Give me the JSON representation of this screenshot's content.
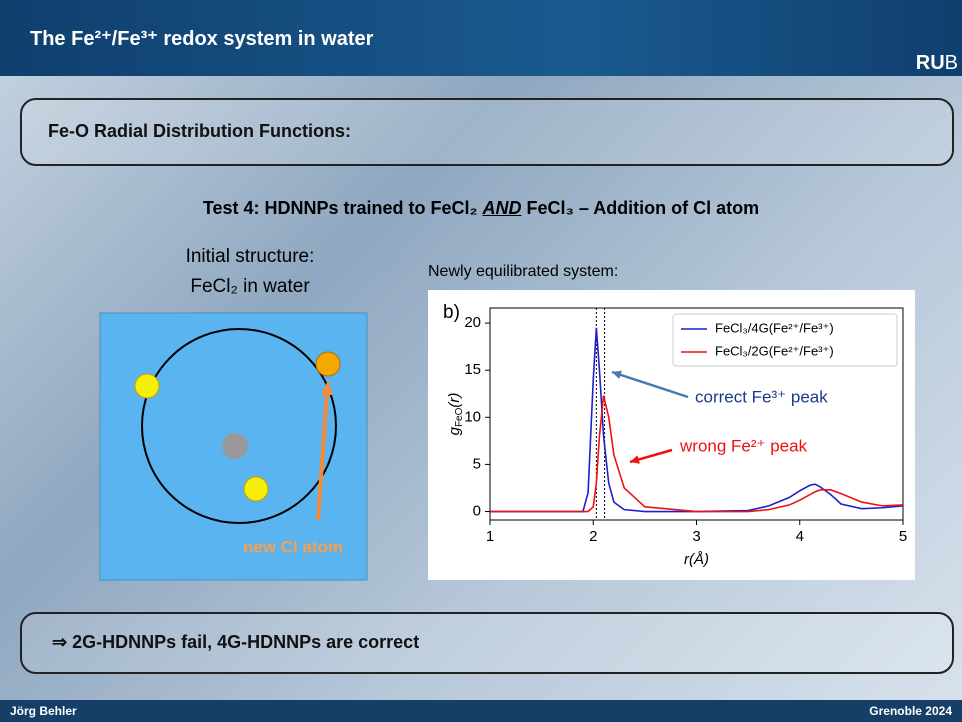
{
  "header": {
    "title": "The Fe²⁺/Fe³⁺ redox system in water",
    "logo_bold": "RU",
    "logo_light": "B"
  },
  "section_title": "Fe-O Radial Distribution Functions:",
  "test_title": {
    "before": "Test 4: HDNNPs trained to FeCl₂ ",
    "emphasis": "AND",
    "after": " FeCl₃ – Addition of Cl atom"
  },
  "left": {
    "line1": "Initial structure:",
    "line2": "FeCl₂ in water",
    "arrow_label": "new Cl atom"
  },
  "chart_caption": "Newly equilibrated system:",
  "chart_data": {
    "type": "line",
    "panel_label": "b)",
    "xlabel": "r(Å)",
    "ylabel": {
      "base": "g",
      "sub": "FeO",
      "rest": "(r)"
    },
    "x": [
      1,
      1.5,
      1.9,
      1.95,
      2.0,
      2.03,
      2.06,
      2.1,
      2.15,
      2.2,
      2.3,
      2.5,
      3.0,
      3.5,
      3.7,
      3.9,
      4.0,
      4.1,
      4.15,
      4.2,
      4.3,
      4.4,
      4.6,
      4.8,
      5.0
    ],
    "series": [
      {
        "name": "FeCl₃/4G(Fe²⁺/Fe³⁺)",
        "color": "#1f1fd0",
        "values": [
          0,
          0,
          0,
          2,
          14,
          19.5,
          15,
          8,
          3,
          1,
          0.2,
          0,
          0,
          0.1,
          0.6,
          1.5,
          2.2,
          2.8,
          2.9,
          2.6,
          1.8,
          0.8,
          0.3,
          0.4,
          0.6
        ]
      },
      {
        "name": "FeCl₃/2G(Fe²⁺/Fe³⁺)",
        "color": "#ee1111",
        "values": [
          0,
          0,
          0,
          0,
          0.5,
          3,
          8,
          12.3,
          10,
          6,
          2.5,
          0.5,
          0,
          0,
          0.2,
          0.7,
          1.2,
          1.8,
          2.1,
          2.3,
          2.3,
          1.9,
          1.0,
          0.6,
          0.7
        ]
      }
    ],
    "reference_lines": [
      2.03,
      2.11
    ],
    "xlim": [
      1,
      5
    ],
    "ylim": [
      -0.9,
      21.6
    ],
    "xticks": [
      1,
      2,
      3,
      4,
      5
    ],
    "yticks": [
      0,
      5,
      10,
      15,
      20
    ],
    "legend": "upper right",
    "annotations": [
      {
        "text": "correct Fe³⁺ peak",
        "color": "#1a3a8a",
        "arrow_color": "#4a78b0"
      },
      {
        "text": "wrong Fe²⁺ peak",
        "color": "#ee1111",
        "arrow_color": "#ee1111"
      }
    ]
  },
  "conclusion": "⇒ 2G-HDNNPs fail, 4G-HDNNPs are correct",
  "footer": {
    "left": "Jörg Behler",
    "right": "Grenoble 2024"
  }
}
